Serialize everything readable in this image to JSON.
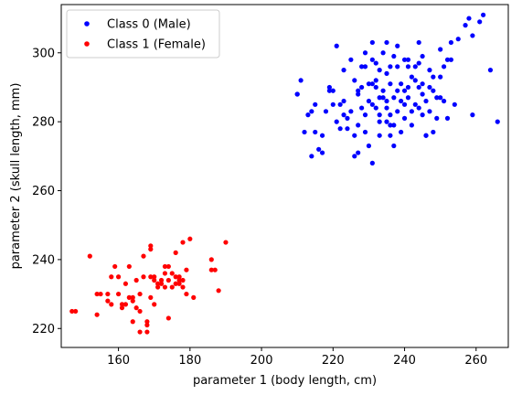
{
  "chart_data": {
    "type": "scatter",
    "title": "",
    "xlabel": "parameter 1 (body length, cm)",
    "ylabel": "parameter 2 (skull length, mm)",
    "xlim": [
      144,
      269
    ],
    "ylim": [
      214.5,
      314
    ],
    "xticks": [
      160,
      180,
      200,
      220,
      240,
      260
    ],
    "yticks": [
      220,
      240,
      260,
      280,
      300
    ],
    "grid": false,
    "legend_position": "upper-left",
    "series": [
      {
        "name": "Class 0 (Male)",
        "color": "#0000ff",
        "points": [
          [
            210,
            288
          ],
          [
            211,
            292
          ],
          [
            212,
            277
          ],
          [
            213,
            282
          ],
          [
            214,
            270
          ],
          [
            215,
            277
          ],
          [
            215,
            285
          ],
          [
            217,
            271
          ],
          [
            217,
            276
          ],
          [
            218,
            283
          ],
          [
            219,
            290
          ],
          [
            219,
            289
          ],
          [
            220,
            289
          ],
          [
            220,
            285
          ],
          [
            221,
            302
          ],
          [
            221,
            280
          ],
          [
            222,
            278
          ],
          [
            223,
            286
          ],
          [
            223,
            295
          ],
          [
            223,
            282
          ],
          [
            224,
            281
          ],
          [
            225,
            298
          ],
          [
            225,
            283
          ],
          [
            226,
            276
          ],
          [
            226,
            270
          ],
          [
            227,
            289
          ],
          [
            227,
            288
          ],
          [
            227,
            279
          ],
          [
            228,
            284
          ],
          [
            228,
            290
          ],
          [
            228,
            296
          ],
          [
            229,
            282
          ],
          [
            229,
            300
          ],
          [
            229,
            277
          ],
          [
            230,
            291
          ],
          [
            230,
            286
          ],
          [
            230,
            273
          ],
          [
            231,
            303
          ],
          [
            231,
            291
          ],
          [
            231,
            285
          ],
          [
            231,
            268
          ],
          [
            232,
            292
          ],
          [
            232,
            284
          ],
          [
            232,
            297
          ],
          [
            232,
            290
          ],
          [
            233,
            282
          ],
          [
            233,
            280
          ],
          [
            233,
            276
          ],
          [
            233,
            295
          ],
          [
            234,
            289
          ],
          [
            234,
            300
          ],
          [
            234,
            287
          ],
          [
            235,
            303
          ],
          [
            235,
            294
          ],
          [
            235,
            286
          ],
          [
            235,
            284
          ],
          [
            235,
            280
          ],
          [
            236,
            296
          ],
          [
            236,
            291
          ],
          [
            236,
            282
          ],
          [
            236,
            279
          ],
          [
            237,
            299
          ],
          [
            237,
            287
          ],
          [
            237,
            273
          ],
          [
            238,
            302
          ],
          [
            238,
            289
          ],
          [
            238,
            283
          ],
          [
            239,
            291
          ],
          [
            239,
            286
          ],
          [
            240,
            298
          ],
          [
            240,
            289
          ],
          [
            240,
            285
          ],
          [
            240,
            281
          ],
          [
            241,
            296
          ],
          [
            241,
            287
          ],
          [
            241,
            290
          ],
          [
            242,
            293
          ],
          [
            242,
            283
          ],
          [
            242,
            279
          ],
          [
            243,
            285
          ],
          [
            243,
            292
          ],
          [
            244,
            303
          ],
          [
            244,
            297
          ],
          [
            244,
            290
          ],
          [
            244,
            284
          ],
          [
            245,
            299
          ],
          [
            245,
            291
          ],
          [
            245,
            282
          ],
          [
            245,
            288
          ],
          [
            246,
            276
          ],
          [
            246,
            286
          ],
          [
            247,
            295
          ],
          [
            247,
            290
          ],
          [
            247,
            283
          ],
          [
            248,
            289
          ],
          [
            248,
            293
          ],
          [
            249,
            281
          ],
          [
            249,
            287
          ],
          [
            250,
            301
          ],
          [
            250,
            293
          ],
          [
            250,
            287
          ],
          [
            251,
            286
          ],
          [
            251,
            296
          ],
          [
            252,
            281
          ],
          [
            252,
            298
          ],
          [
            253,
            303
          ],
          [
            253,
            298
          ],
          [
            254,
            285
          ],
          [
            255,
            304
          ],
          [
            257,
            308
          ],
          [
            258,
            310
          ],
          [
            259,
            305
          ],
          [
            259,
            282
          ],
          [
            261,
            309
          ],
          [
            262,
            311
          ],
          [
            264,
            295
          ],
          [
            266,
            280
          ],
          [
            210,
            288
          ],
          [
            214,
            283
          ],
          [
            216,
            272
          ],
          [
            222,
            285
          ],
          [
            226,
            292
          ],
          [
            233,
            287
          ],
          [
            237,
            279
          ],
          [
            239,
            277
          ],
          [
            243,
            296
          ],
          [
            246,
            276
          ],
          [
            248,
            277
          ],
          [
            229,
            296
          ],
          [
            231,
            298
          ],
          [
            236,
            276
          ],
          [
            238,
            296
          ],
          [
            241,
            298
          ],
          [
            224,
            278
          ],
          [
            227,
            271
          ]
        ]
      },
      {
        "name": "Class 1 (Female)",
        "color": "#ff0000",
        "points": [
          [
            147,
            225
          ],
          [
            148,
            225
          ],
          [
            152,
            241
          ],
          [
            154,
            230
          ],
          [
            154,
            224
          ],
          [
            155,
            230
          ],
          [
            157,
            228
          ],
          [
            157,
            230
          ],
          [
            158,
            227
          ],
          [
            158,
            235
          ],
          [
            159,
            238
          ],
          [
            160,
            230
          ],
          [
            160,
            235
          ],
          [
            161,
            226
          ],
          [
            161,
            227
          ],
          [
            162,
            233
          ],
          [
            162,
            227
          ],
          [
            163,
            229
          ],
          [
            163,
            238
          ],
          [
            164,
            222
          ],
          [
            164,
            229
          ],
          [
            164,
            228
          ],
          [
            165,
            226
          ],
          [
            165,
            234
          ],
          [
            166,
            230
          ],
          [
            166,
            219
          ],
          [
            166,
            225
          ],
          [
            167,
            235
          ],
          [
            167,
            241
          ],
          [
            168,
            222
          ],
          [
            168,
            219
          ],
          [
            168,
            221
          ],
          [
            169,
            243
          ],
          [
            169,
            244
          ],
          [
            169,
            229
          ],
          [
            169,
            235
          ],
          [
            170,
            227
          ],
          [
            170,
            234
          ],
          [
            170,
            235
          ],
          [
            171,
            232
          ],
          [
            171,
            233
          ],
          [
            172,
            234
          ],
          [
            172,
            233
          ],
          [
            173,
            236
          ],
          [
            173,
            232
          ],
          [
            173,
            238
          ],
          [
            174,
            238
          ],
          [
            174,
            234
          ],
          [
            174,
            223
          ],
          [
            175,
            232
          ],
          [
            175,
            236
          ],
          [
            176,
            242
          ],
          [
            176,
            235
          ],
          [
            176,
            233
          ],
          [
            177,
            234
          ],
          [
            177,
            233
          ],
          [
            177,
            235
          ],
          [
            178,
            234
          ],
          [
            178,
            245
          ],
          [
            178,
            232
          ],
          [
            179,
            237
          ],
          [
            179,
            230
          ],
          [
            180,
            246
          ],
          [
            181,
            229
          ],
          [
            186,
            240
          ],
          [
            186,
            237
          ],
          [
            187,
            237
          ],
          [
            188,
            231
          ],
          [
            190,
            245
          ]
        ]
      }
    ]
  }
}
